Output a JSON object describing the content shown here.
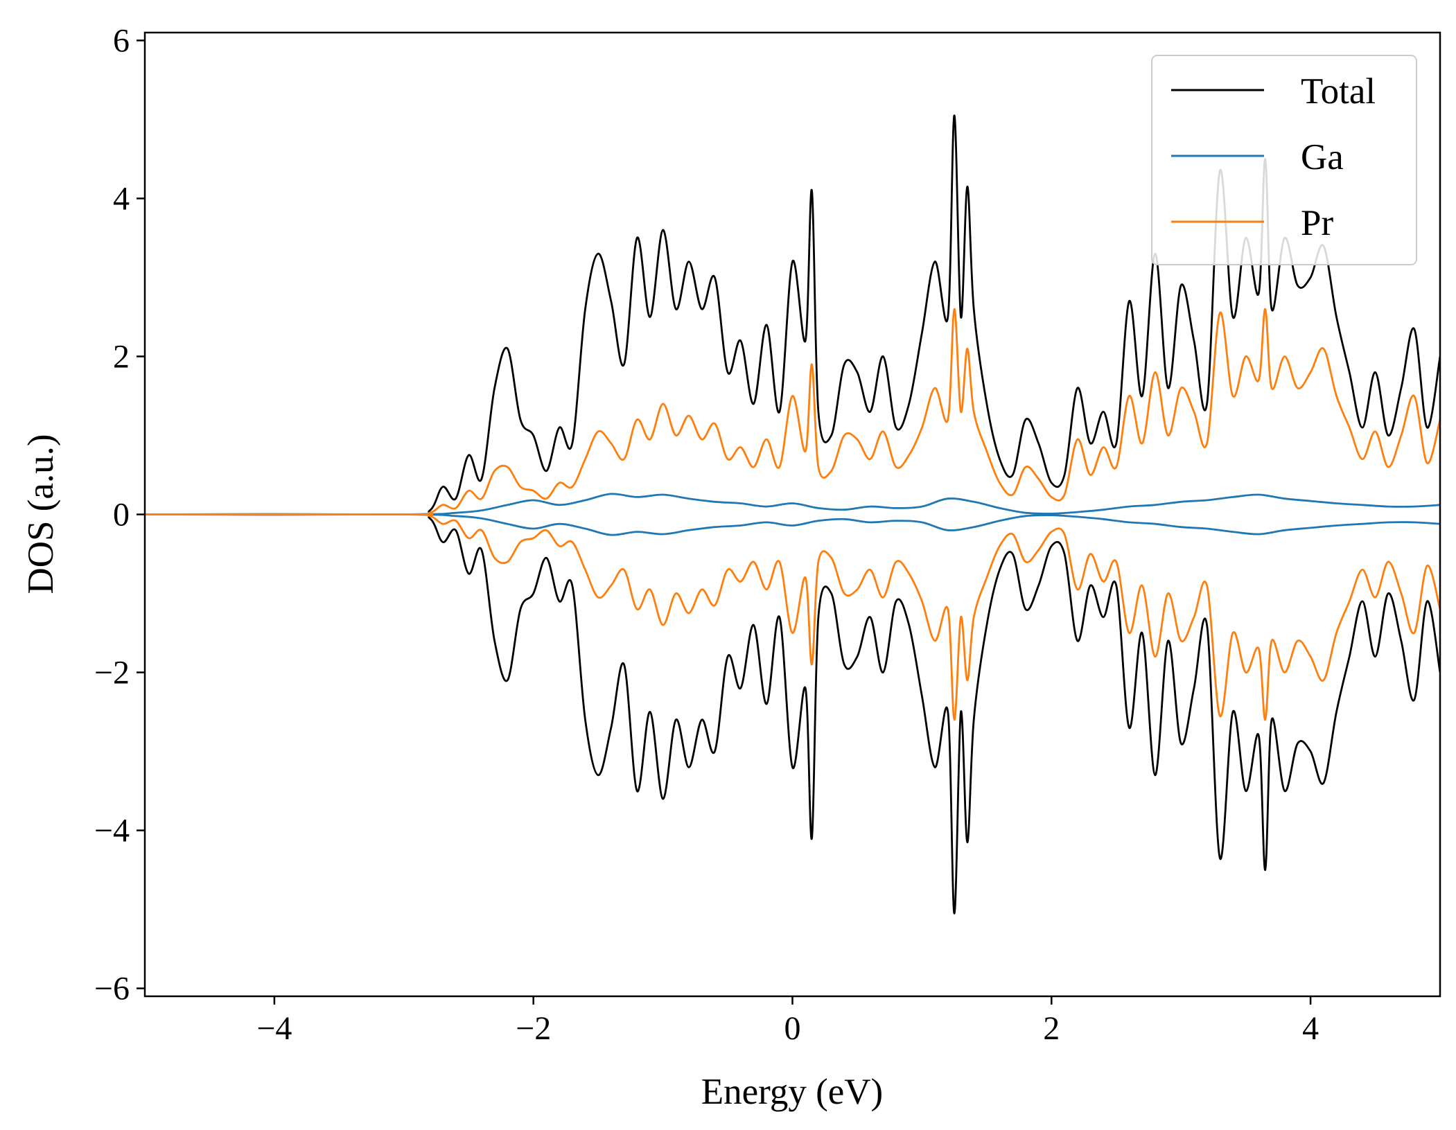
{
  "chart_data": {
    "type": "line",
    "title": "",
    "xlabel": "Energy (eV)",
    "ylabel": "DOS (a.u.)",
    "xlim": [
      -5,
      5
    ],
    "ylim": [
      -6.1,
      6.1
    ],
    "xticks": [
      -4,
      -2,
      0,
      2,
      4
    ],
    "xtick_labels": [
      "−4",
      "−2",
      "0",
      "2",
      "4"
    ],
    "yticks": [
      -6,
      -4,
      -2,
      0,
      2,
      4,
      6
    ],
    "ytick_labels": [
      "−6",
      "−4",
      "−2",
      "0",
      "2",
      "4",
      "6"
    ],
    "grid": false,
    "legend_position": "top-right",
    "mirrored_spin_down": true,
    "series": [
      {
        "name": "Total",
        "color": "#000000",
        "x": [
          -5.0,
          -3.0,
          -2.8,
          -2.7,
          -2.6,
          -2.5,
          -2.4,
          -2.3,
          -2.2,
          -2.1,
          -2.0,
          -1.9,
          -1.8,
          -1.7,
          -1.6,
          -1.5,
          -1.4,
          -1.3,
          -1.2,
          -1.1,
          -1.0,
          -0.9,
          -0.8,
          -0.7,
          -0.6,
          -0.5,
          -0.4,
          -0.3,
          -0.2,
          -0.1,
          0.0,
          0.1,
          0.15,
          0.2,
          0.3,
          0.4,
          0.5,
          0.6,
          0.7,
          0.8,
          0.9,
          1.0,
          1.1,
          1.2,
          1.25,
          1.3,
          1.35,
          1.4,
          1.5,
          1.6,
          1.7,
          1.8,
          1.9,
          2.0,
          2.1,
          2.2,
          2.3,
          2.4,
          2.5,
          2.6,
          2.7,
          2.8,
          2.9,
          3.0,
          3.1,
          3.2,
          3.3,
          3.4,
          3.5,
          3.6,
          3.65,
          3.7,
          3.8,
          3.9,
          4.0,
          4.1,
          4.2,
          4.3,
          4.4,
          4.5,
          4.6,
          4.7,
          4.8,
          4.9,
          5.0
        ],
        "values": [
          0.0,
          0.0,
          0.05,
          0.35,
          0.2,
          0.75,
          0.45,
          1.6,
          2.1,
          1.2,
          1.0,
          0.55,
          1.1,
          0.9,
          2.6,
          3.3,
          2.7,
          1.9,
          3.5,
          2.5,
          3.6,
          2.6,
          3.2,
          2.6,
          3.0,
          1.8,
          2.2,
          1.4,
          2.4,
          1.3,
          3.2,
          2.2,
          4.1,
          1.3,
          1.0,
          1.9,
          1.8,
          1.3,
          2.0,
          1.1,
          1.4,
          2.3,
          3.2,
          2.5,
          5.05,
          2.5,
          4.15,
          2.6,
          1.4,
          0.7,
          0.5,
          1.2,
          0.9,
          0.4,
          0.5,
          1.6,
          0.9,
          1.3,
          0.9,
          2.7,
          1.5,
          3.3,
          1.6,
          2.9,
          2.2,
          1.4,
          4.35,
          2.5,
          3.5,
          2.8,
          4.5,
          2.6,
          3.5,
          2.9,
          3.0,
          3.4,
          2.5,
          1.8,
          1.1,
          1.8,
          1.0,
          1.6,
          2.35,
          1.1,
          2.0
        ]
      },
      {
        "name": "Ga",
        "color": "#1f77b4",
        "x": [
          -5.0,
          -3.0,
          -2.6,
          -2.4,
          -2.2,
          -2.0,
          -1.8,
          -1.6,
          -1.4,
          -1.2,
          -1.0,
          -0.8,
          -0.6,
          -0.4,
          -0.2,
          0.0,
          0.2,
          0.4,
          0.6,
          0.8,
          1.0,
          1.2,
          1.4,
          1.6,
          1.8,
          2.0,
          2.2,
          2.4,
          2.6,
          2.8,
          3.0,
          3.2,
          3.4,
          3.6,
          3.8,
          4.0,
          4.2,
          4.4,
          4.6,
          4.8,
          5.0
        ],
        "values": [
          0.0,
          0.0,
          0.02,
          0.05,
          0.12,
          0.18,
          0.12,
          0.18,
          0.26,
          0.22,
          0.25,
          0.2,
          0.16,
          0.14,
          0.1,
          0.14,
          0.08,
          0.06,
          0.1,
          0.08,
          0.1,
          0.2,
          0.16,
          0.08,
          0.02,
          0.01,
          0.03,
          0.06,
          0.1,
          0.12,
          0.16,
          0.18,
          0.22,
          0.25,
          0.2,
          0.17,
          0.14,
          0.12,
          0.1,
          0.1,
          0.12
        ]
      },
      {
        "name": "Pr",
        "color": "#ff7f0e",
        "x": [
          -5.0,
          -3.0,
          -2.8,
          -2.7,
          -2.6,
          -2.5,
          -2.4,
          -2.3,
          -2.2,
          -2.1,
          -2.0,
          -1.9,
          -1.8,
          -1.7,
          -1.6,
          -1.5,
          -1.4,
          -1.3,
          -1.2,
          -1.1,
          -1.0,
          -0.9,
          -0.8,
          -0.7,
          -0.6,
          -0.5,
          -0.4,
          -0.3,
          -0.2,
          -0.1,
          0.0,
          0.1,
          0.15,
          0.2,
          0.3,
          0.4,
          0.5,
          0.6,
          0.7,
          0.8,
          0.9,
          1.0,
          1.1,
          1.2,
          1.25,
          1.3,
          1.35,
          1.4,
          1.5,
          1.6,
          1.7,
          1.8,
          1.9,
          2.0,
          2.1,
          2.2,
          2.3,
          2.4,
          2.5,
          2.6,
          2.7,
          2.8,
          2.9,
          3.0,
          3.1,
          3.2,
          3.3,
          3.4,
          3.5,
          3.6,
          3.65,
          3.7,
          3.8,
          3.9,
          4.0,
          4.1,
          4.2,
          4.3,
          4.4,
          4.5,
          4.6,
          4.7,
          4.8,
          4.9,
          5.0
        ],
        "values": [
          0.0,
          0.0,
          0.02,
          0.12,
          0.08,
          0.3,
          0.2,
          0.55,
          0.6,
          0.35,
          0.3,
          0.2,
          0.4,
          0.35,
          0.7,
          1.05,
          0.9,
          0.7,
          1.2,
          0.95,
          1.4,
          1.0,
          1.25,
          0.95,
          1.15,
          0.7,
          0.85,
          0.6,
          0.95,
          0.6,
          1.5,
          0.8,
          1.9,
          0.6,
          0.55,
          1.0,
          0.95,
          0.7,
          1.05,
          0.6,
          0.75,
          1.1,
          1.6,
          1.2,
          2.6,
          1.3,
          2.1,
          1.3,
          0.8,
          0.4,
          0.25,
          0.6,
          0.45,
          0.22,
          0.25,
          0.95,
          0.5,
          0.85,
          0.6,
          1.5,
          0.9,
          1.8,
          1.0,
          1.6,
          1.3,
          0.9,
          2.55,
          1.5,
          2.0,
          1.7,
          2.6,
          1.6,
          2.0,
          1.6,
          1.8,
          2.1,
          1.5,
          1.1,
          0.7,
          1.05,
          0.6,
          1.0,
          1.5,
          0.65,
          1.2
        ]
      }
    ]
  }
}
